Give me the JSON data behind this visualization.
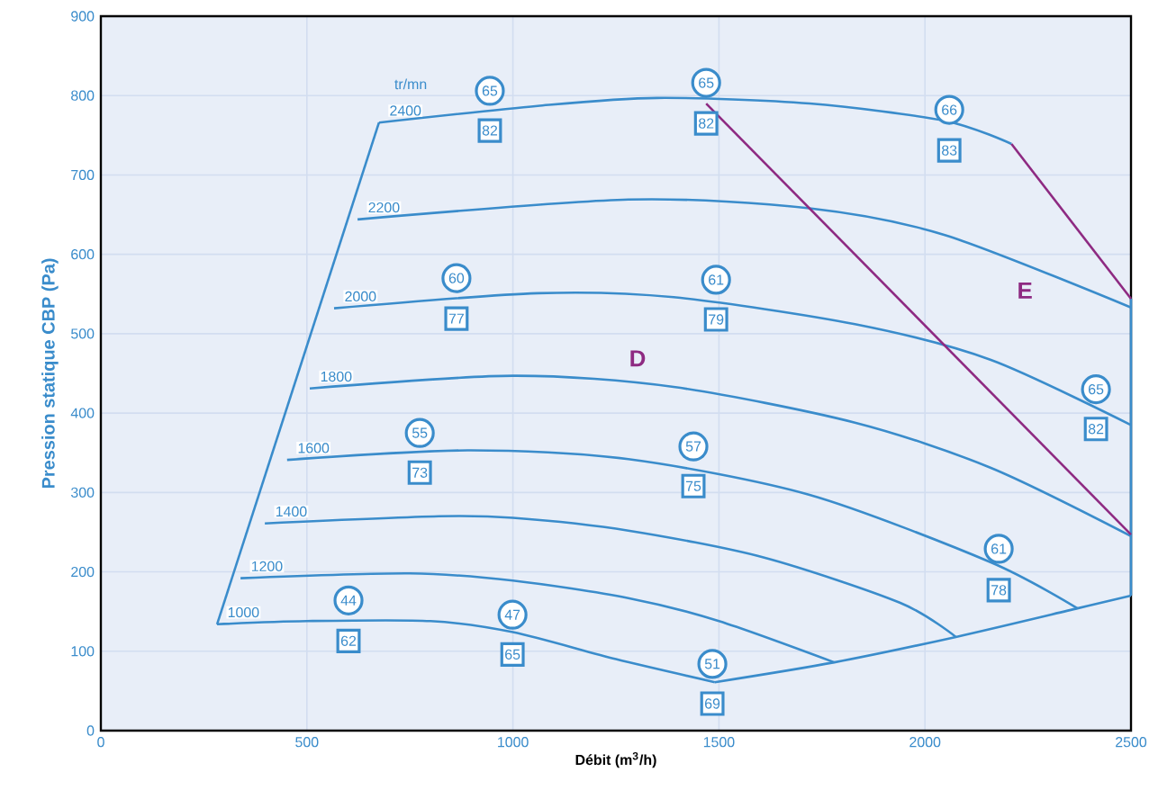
{
  "chart_data": {
    "type": "line",
    "xlabel": "Débit (m$^{3}$/h)",
    "ylabel": "Pression statique CBP (Pa)",
    "xlim": [
      0,
      2500
    ],
    "ylim": [
      0,
      900
    ],
    "xticks": [
      0,
      500,
      1000,
      1500,
      2000,
      2500
    ],
    "yticks": [
      0,
      100,
      200,
      300,
      400,
      500,
      600,
      700,
      800,
      900
    ],
    "grid": true,
    "series": [
      {
        "name": "1000",
        "color": "#3a8ccb",
        "x": [
          282,
          500,
          800,
          1000,
          1250,
          1490
        ],
        "values": [
          134,
          138,
          138,
          124,
          90,
          61
        ]
      },
      {
        "name": "1200",
        "color": "#3a8ccb",
        "x": [
          339,
          750,
          1000,
          1280,
          1500,
          1780
        ],
        "values": [
          192,
          198,
          189,
          167,
          138,
          86
        ]
      },
      {
        "name": "1400",
        "color": "#3a8ccb",
        "x": [
          398,
          820,
          1000,
          1280,
          1610,
          1940,
          2075
        ],
        "values": [
          261,
          270,
          268,
          252,
          218,
          161,
          118
        ]
      },
      {
        "name": "1600",
        "color": "#3a8ccb",
        "x": [
          452,
          890,
          1280,
          1720,
          2160,
          2370
        ],
        "values": [
          341,
          353,
          342,
          297,
          212,
          154
        ]
      },
      {
        "name": "1800",
        "color": "#3a8ccb",
        "x": [
          507,
          1000,
          1390,
          1830,
          2160,
          2500
        ],
        "values": [
          431,
          447,
          433,
          388,
          331,
          245
        ]
      },
      {
        "name": "2000",
        "color": "#3a8ccb",
        "x": [
          566,
          1060,
          1390,
          1830,
          2160,
          2500
        ],
        "values": [
          532,
          551,
          546,
          512,
          467,
          385
        ]
      },
      {
        "name": "2200",
        "color": "#3a8ccb",
        "x": [
          623,
          1280,
          1720,
          2050,
          2500
        ],
        "values": [
          644,
          669,
          658,
          624,
          533
        ]
      },
      {
        "name": "2400",
        "color": "#3a8ccb",
        "x": [
          675,
          1060,
          1350,
          1720,
          2050,
          2210
        ],
        "values": [
          766,
          787,
          797,
          790,
          768,
          739
        ]
      },
      {
        "color": "#3a8ccb",
        "x": [
          282,
          675
        ],
        "values": [
          134,
          766
        ]
      },
      {
        "color": "#3a8ccb",
        "x": [
          1490,
          1780,
          2075,
          2370,
          2500
        ],
        "values": [
          61,
          86,
          118,
          154,
          170
        ]
      },
      {
        "color": "#3a8ccb",
        "x": [
          2500,
          2500
        ],
        "values": [
          170,
          544
        ]
      },
      {
        "color": "#8e2a82",
        "x": [
          1469,
          2500
        ],
        "values": [
          790,
          247
        ]
      },
      {
        "color": "#8e2a82",
        "x": [
          2210,
          2500
        ],
        "values": [
          739,
          544
        ]
      }
    ],
    "annotations": [
      "tr/mn",
      "D",
      "E",
      {
        "text": "65",
        "x": 944,
        "y": 806
      },
      {
        "text": "82",
        "x": 944,
        "y": 756
      },
      {
        "text": "65",
        "x": 1469,
        "y": 816
      },
      {
        "text": "82",
        "x": 1469,
        "y": 765
      },
      {
        "text": "66",
        "x": 2059,
        "y": 782
      },
      {
        "text": "83",
        "x": 2059,
        "y": 731
      },
      {
        "text": "60",
        "x": 863,
        "y": 570
      },
      {
        "text": "77",
        "x": 863,
        "y": 519
      },
      {
        "text": "61",
        "x": 1493,
        "y": 568
      },
      {
        "text": "79",
        "x": 1493,
        "y": 518
      },
      {
        "text": "65",
        "x": 2415,
        "y": 430
      },
      {
        "text": "82",
        "x": 2415,
        "y": 380
      },
      {
        "text": "55",
        "x": 774,
        "y": 375
      },
      {
        "text": "73",
        "x": 774,
        "y": 325
      },
      {
        "text": "57",
        "x": 1438,
        "y": 358
      },
      {
        "text": "75",
        "x": 1438,
        "y": 308
      },
      {
        "text": "61",
        "x": 2179,
        "y": 229
      },
      {
        "text": "78",
        "x": 2179,
        "y": 177
      },
      {
        "text": "44",
        "x": 601,
        "y": 164
      },
      {
        "text": "62",
        "x": 601,
        "y": 113
      },
      {
        "text": "47",
        "x": 999,
        "y": 146
      },
      {
        "text": "65",
        "x": 999,
        "y": 96
      },
      {
        "text": "51",
        "x": 1484,
        "y": 84
      },
      {
        "text": "69",
        "x": 1484,
        "y": 34
      }
    ]
  }
}
